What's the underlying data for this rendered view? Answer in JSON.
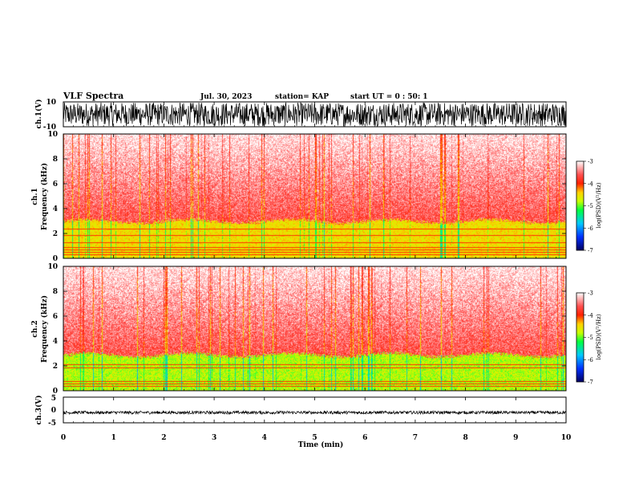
{
  "header": {
    "title": "VLF Spectra",
    "date": "Jul. 30, 2023",
    "station": "station= KAP",
    "start_ut": "start UT = 0 : 50: 1"
  },
  "colors": {
    "axis": "#000000",
    "colormap": [
      "#000080",
      "#0040ff",
      "#00c8ff",
      "#00ff40",
      "#c8ff00",
      "#ffd000",
      "#ff0000",
      "#ffffff"
    ]
  },
  "chart_data": [
    {
      "type": "line",
      "panel": "ch1-waveform",
      "ylabel": "ch.1(V)",
      "ylim": [
        -10,
        10
      ],
      "yticklabels": [
        "10",
        "-10"
      ],
      "xlim": [
        0,
        10
      ],
      "trace": "dense broadband noise filling most of the range"
    },
    {
      "type": "heatmap",
      "panel": "ch1-spectrogram",
      "ylabel": "ch.1\nFrequency (kHz)",
      "ylim": [
        0,
        10
      ],
      "yticks": [
        0,
        2,
        4,
        6,
        8,
        10
      ],
      "xlim": [
        0,
        10
      ],
      "colorbar": {
        "label": "log(PSD)(V²/Hz)",
        "range": [
          -7,
          -3
        ],
        "ticks": [
          -3,
          -4,
          -5,
          -6,
          -7
        ]
      },
      "band_edge_khz": 3,
      "horizontal_lines_khz": [
        0.3,
        0.5,
        0.7,
        0.9,
        1.3,
        1.9,
        2.4
      ]
    },
    {
      "type": "heatmap",
      "panel": "ch2-spectrogram",
      "ylabel": "ch.2\nFrequency (kHz)",
      "ylim": [
        0,
        10
      ],
      "yticks": [
        0,
        2,
        4,
        6,
        8,
        10
      ],
      "xlim": [
        0,
        10
      ],
      "colorbar": {
        "label": "log(PSD)(V²/Hz)",
        "range": [
          -7,
          -3
        ],
        "ticks": [
          -3,
          -4,
          -5,
          -6,
          -7
        ]
      },
      "band_edge_khz": 2.9,
      "horizontal_lines_khz": [
        0.4,
        0.6,
        0.8,
        1.9,
        2.1
      ]
    },
    {
      "type": "line",
      "panel": "ch3-waveform",
      "ylabel": "ch.3(V)",
      "ylim": [
        -5,
        5
      ],
      "yticklabels": [
        "5",
        "0",
        "-5"
      ],
      "xlim": [
        0,
        10
      ],
      "trace": "narrow band near -1 V"
    }
  ],
  "xaxis": {
    "label": "Time (min)",
    "ticks": [
      "0",
      "1",
      "2",
      "3",
      "4",
      "5",
      "6",
      "7",
      "8",
      "9",
      "10"
    ]
  }
}
